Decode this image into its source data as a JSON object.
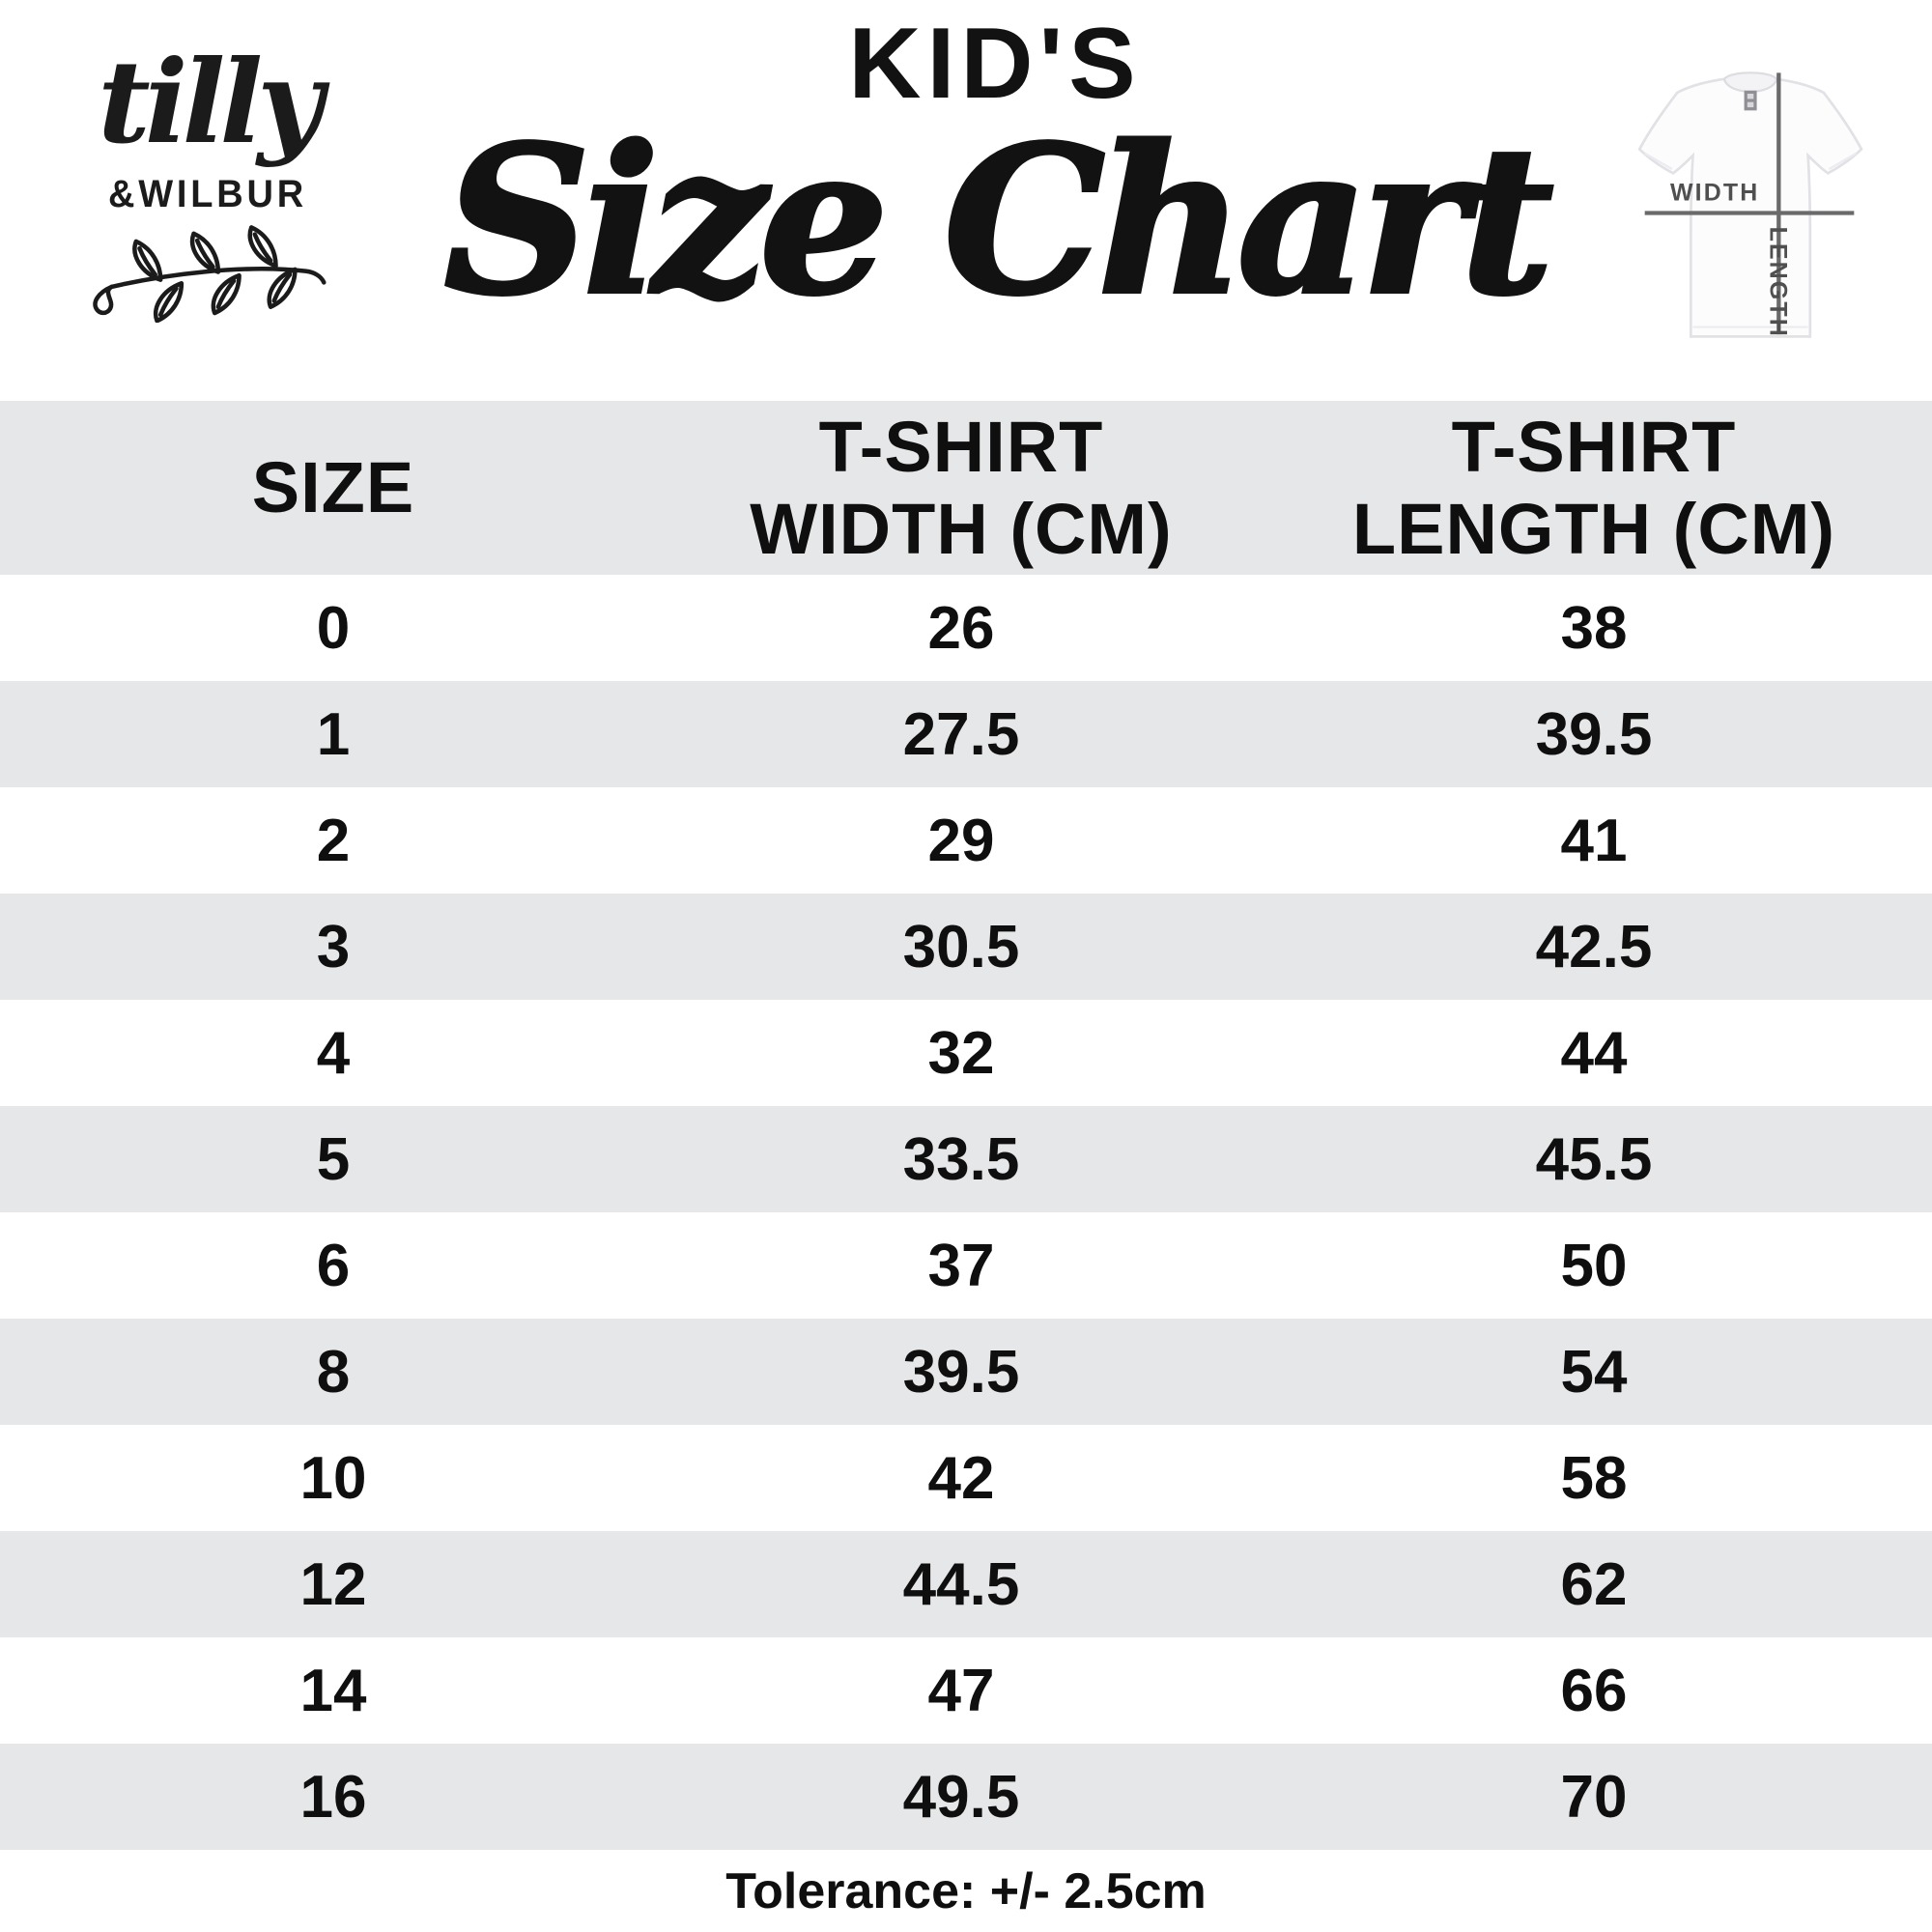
{
  "brand": {
    "script_name": "tilly",
    "caps_name": "&WILBUR"
  },
  "title": {
    "kicker": "KID'S",
    "main": "Size Chart"
  },
  "shirt_diagram": {
    "width_label": "WIDTH",
    "length_label": "LENGTH"
  },
  "table_header": {
    "col1": {
      "line1": "SIZE",
      "line2": ""
    },
    "col2": {
      "line1": "T-SHIRT",
      "line2": "WIDTH (CM)"
    },
    "col3": {
      "line1": "T-SHIRT",
      "line2": "LENGTH (CM)"
    }
  },
  "chart_data": {
    "type": "table",
    "title": "KID'S Size Chart",
    "columns": [
      "SIZE",
      "T-SHIRT WIDTH (CM)",
      "T-SHIRT LENGTH (CM)"
    ],
    "rows": [
      {
        "size": 0,
        "width": 26,
        "length": 38
      },
      {
        "size": 1,
        "width": 27.5,
        "length": 39.5
      },
      {
        "size": 2,
        "width": 29,
        "length": 41
      },
      {
        "size": 3,
        "width": 30.5,
        "length": 42.5
      },
      {
        "size": 4,
        "width": 32,
        "length": 44
      },
      {
        "size": 5,
        "width": 33.5,
        "length": 45.5
      },
      {
        "size": 6,
        "width": 37,
        "length": 50
      },
      {
        "size": 8,
        "width": 39.5,
        "length": 54
      },
      {
        "size": 10,
        "width": 42,
        "length": 58
      },
      {
        "size": 12,
        "width": 44.5,
        "length": 62
      },
      {
        "size": 14,
        "width": 47,
        "length": 66
      },
      {
        "size": 16,
        "width": 49.5,
        "length": 70
      }
    ],
    "footnote": "Tolerance: +/- 2.5cm"
  },
  "footer": {
    "tolerance": "Tolerance: +/- 2.5cm"
  },
  "colors": {
    "row_alt": "#e6e7e8",
    "ink": "#111111",
    "diagram_line": "#6a6a6a",
    "diagram_label": "#4f4f4f"
  }
}
